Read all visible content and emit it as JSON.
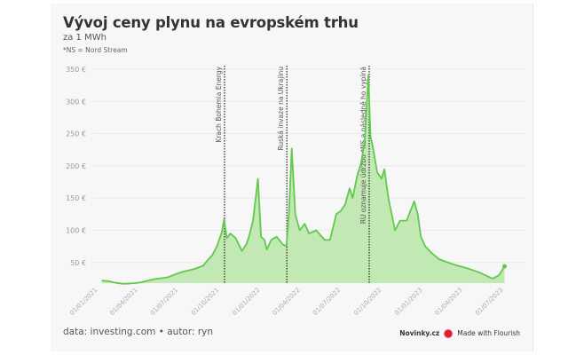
{
  "chart_data": {
    "type": "area",
    "title": "Vývoj ceny plynu na evropském trhu",
    "subtitle": "za 1 MWh",
    "note": "*NS = Nord Stream",
    "ylim": [
      18,
      350
    ],
    "xlim": [
      "2021-01-01",
      "2023-07-01"
    ],
    "grid": true,
    "line_color": "#62c94e",
    "fill_color": "#c2e9b4",
    "y_ticks": [
      50,
      100,
      150,
      200,
      250,
      300,
      350
    ],
    "y_tick_labels": [
      "50 €",
      "100 €",
      "150 €",
      "200 €",
      "250 €",
      "300 €",
      "350 €"
    ],
    "x_ticks": [
      "2021-01-01",
      "2021-04-01",
      "2021-07-01",
      "2021-10-01",
      "2022-01-01",
      "2022-04-01",
      "2022-07-01",
      "2022-10-01",
      "2023-01-01",
      "2023-04-01",
      "2023-07-01"
    ],
    "x_tick_labels": [
      "01/01/2021",
      "01/04/2021",
      "01/07/2021",
      "01/10/2021",
      "01/01/2022",
      "01/04/2022",
      "01/07/2022",
      "01/10/2022",
      "01/01/2023",
      "01/04/2023",
      "01/07/2023"
    ],
    "series": [
      {
        "x": [
          "2021-01-04",
          "2021-01-20",
          "2021-02-01",
          "2021-02-20",
          "2021-03-01",
          "2021-03-20",
          "2021-04-01",
          "2021-05-01",
          "2021-06-01",
          "2021-07-01",
          "2021-07-20",
          "2021-08-01",
          "2021-08-20",
          "2021-09-01",
          "2021-09-10",
          "2021-09-20",
          "2021-10-01",
          "2021-10-06",
          "2021-10-12",
          "2021-10-20",
          "2021-11-01",
          "2021-11-15",
          "2021-11-25",
          "2021-12-01",
          "2021-12-10",
          "2021-12-21",
          "2021-12-28",
          "2022-01-05",
          "2022-01-10",
          "2022-01-20",
          "2022-02-01",
          "2022-02-15",
          "2022-02-23",
          "2022-03-01",
          "2022-03-07",
          "2022-03-15",
          "2022-03-25",
          "2022-04-05",
          "2022-04-15",
          "2022-05-01",
          "2022-05-20",
          "2022-06-01",
          "2022-06-15",
          "2022-06-25",
          "2022-07-05",
          "2022-07-15",
          "2022-07-22",
          "2022-08-01",
          "2022-08-10",
          "2022-08-18",
          "2022-08-26",
          "2022-08-31",
          "2022-09-05",
          "2022-09-15",
          "2022-09-25",
          "2022-10-01",
          "2022-10-10",
          "2022-10-25",
          "2022-11-05",
          "2022-11-20",
          "2022-12-07",
          "2022-12-15",
          "2022-12-22",
          "2023-01-01",
          "2023-01-15",
          "2023-02-01",
          "2023-03-01",
          "2023-03-15",
          "2023-04-01",
          "2023-05-01",
          "2023-06-01",
          "2023-06-15",
          "2023-06-28"
        ],
        "values": [
          22,
          21,
          19,
          17,
          17,
          18,
          19,
          24,
          27,
          35,
          38,
          40,
          45,
          55,
          62,
          75,
          97,
          117,
          88,
          95,
          88,
          68,
          78,
          90,
          115,
          180,
          90,
          85,
          70,
          85,
          90,
          78,
          75,
          130,
          227,
          125,
          100,
          110,
          95,
          100,
          85,
          85,
          125,
          130,
          140,
          165,
          150,
          185,
          205,
          240,
          340,
          245,
          230,
          190,
          180,
          195,
          150,
          100,
          115,
          115,
          145,
          125,
          90,
          75,
          65,
          55,
          48,
          45,
          42,
          35,
          25,
          30,
          44
        ]
      }
    ],
    "annotations": [
      {
        "x": "2021-10-07",
        "label": "Krach Bohemia Energy"
      },
      {
        "x": "2022-02-24",
        "label": "Ruská invaze na Ukrajinu"
      },
      {
        "x": "2022-08-28",
        "label": "RU oznamuje údržbu *NS a následně ho vypíná"
      }
    ]
  },
  "footer": {
    "source": "data: investing.com • autor: ryn",
    "brand": "Novinky.cz",
    "made_with": "Made with Flourish"
  }
}
